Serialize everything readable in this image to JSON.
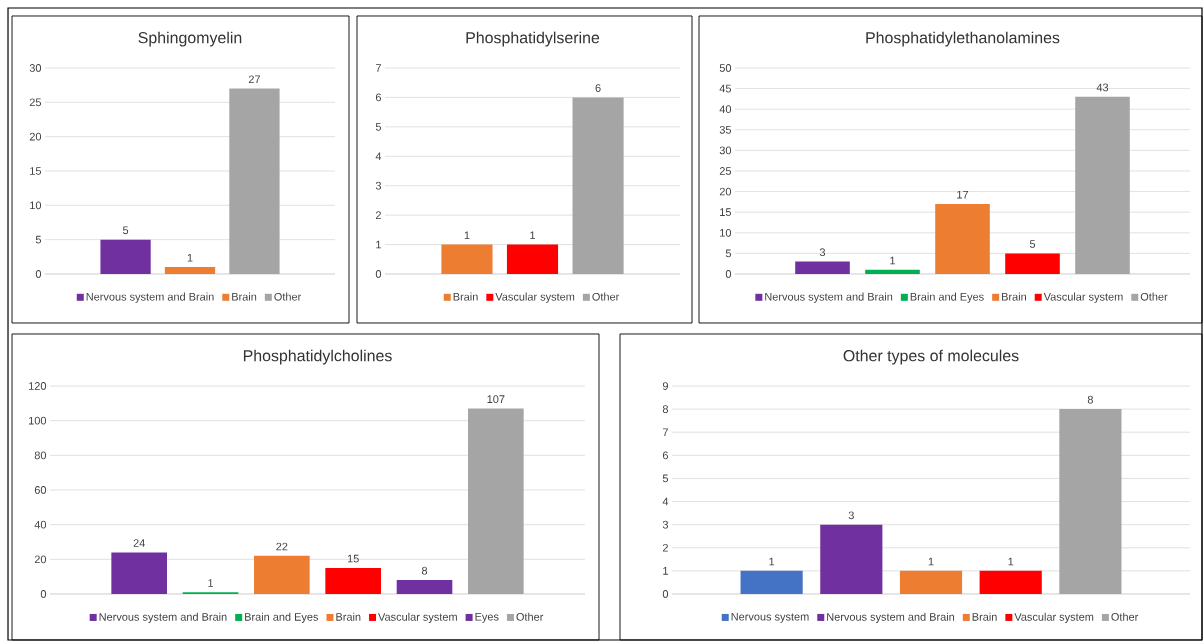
{
  "chart_data": [
    {
      "type": "bar",
      "title": "Sphingomyelin",
      "categories": [
        null
      ],
      "series": [
        {
          "name": "Nervous system and Brain",
          "color": "#7030a0",
          "values": [
            5
          ]
        },
        {
          "name": "Brain",
          "color": "#ed7d31",
          "values": [
            1
          ]
        },
        {
          "name": "Other",
          "color": "#a5a5a5",
          "values": [
            27
          ]
        }
      ],
      "ylim": [
        0,
        30
      ],
      "yticks": [
        0,
        5,
        10,
        15,
        20,
        25,
        30
      ],
      "grid": "y",
      "legend": "bottom",
      "data_labels": true
    },
    {
      "type": "bar",
      "title": "Phosphatidylserine",
      "categories": [
        null
      ],
      "series": [
        {
          "name": "Brain",
          "color": "#ed7d31",
          "values": [
            1
          ]
        },
        {
          "name": "Vascular system",
          "color": "#ff0000",
          "values": [
            1
          ]
        },
        {
          "name": "Other",
          "color": "#a5a5a5",
          "values": [
            6
          ]
        }
      ],
      "ylim": [
        0,
        7
      ],
      "yticks": [
        0,
        1,
        2,
        3,
        4,
        5,
        6,
        7
      ],
      "grid": "y",
      "legend": "bottom",
      "data_labels": true
    },
    {
      "type": "bar",
      "title": "Phosphatidylethanolamines",
      "categories": [
        null
      ],
      "series": [
        {
          "name": "Nervous system and Brain",
          "color": "#7030a0",
          "values": [
            3
          ]
        },
        {
          "name": "Brain and Eyes",
          "color": "#00b050",
          "values": [
            1
          ]
        },
        {
          "name": "Brain",
          "color": "#ed7d31",
          "values": [
            17
          ]
        },
        {
          "name": "Vascular system",
          "color": "#ff0000",
          "values": [
            5
          ]
        },
        {
          "name": "Other",
          "color": "#a5a5a5",
          "values": [
            43
          ]
        }
      ],
      "ylim": [
        0,
        50
      ],
      "yticks": [
        0,
        5,
        10,
        15,
        20,
        25,
        30,
        35,
        40,
        45,
        50
      ],
      "grid": "y",
      "legend": "bottom",
      "data_labels": true
    },
    {
      "type": "bar",
      "title": "Phosphatidylcholines",
      "categories": [
        null
      ],
      "series": [
        {
          "name": "Nervous system and Brain",
          "color": "#7030a0",
          "values": [
            24
          ]
        },
        {
          "name": "Brain and Eyes",
          "color": "#00b050",
          "values": [
            1
          ]
        },
        {
          "name": "Brain",
          "color": "#ed7d31",
          "values": [
            22
          ]
        },
        {
          "name": "Vascular system",
          "color": "#ff0000",
          "values": [
            15
          ]
        },
        {
          "name": "Eyes",
          "color": "#7030a0",
          "values": [
            8
          ]
        },
        {
          "name": "Other",
          "color": "#a5a5a5",
          "values": [
            107
          ]
        }
      ],
      "ylim": [
        0,
        120
      ],
      "yticks": [
        0,
        20,
        40,
        60,
        80,
        100,
        120
      ],
      "grid": "y",
      "legend": "bottom",
      "data_labels": true
    },
    {
      "type": "bar",
      "title": "Other types of molecules",
      "categories": [
        null
      ],
      "series": [
        {
          "name": "Nervous system",
          "color": "#4472c4",
          "values": [
            1
          ]
        },
        {
          "name": "Nervous system and Brain",
          "color": "#7030a0",
          "values": [
            3
          ]
        },
        {
          "name": "Brain",
          "color": "#ed7d31",
          "values": [
            1
          ]
        },
        {
          "name": "Vascular system",
          "color": "#ff0000",
          "values": [
            1
          ]
        },
        {
          "name": "Other",
          "color": "#a5a5a5",
          "values": [
            8
          ]
        }
      ],
      "ylim": [
        0,
        9
      ],
      "yticks": [
        0,
        1,
        2,
        3,
        4,
        5,
        6,
        7,
        8,
        9
      ],
      "grid": "y",
      "legend": "bottom",
      "data_labels": true
    }
  ]
}
